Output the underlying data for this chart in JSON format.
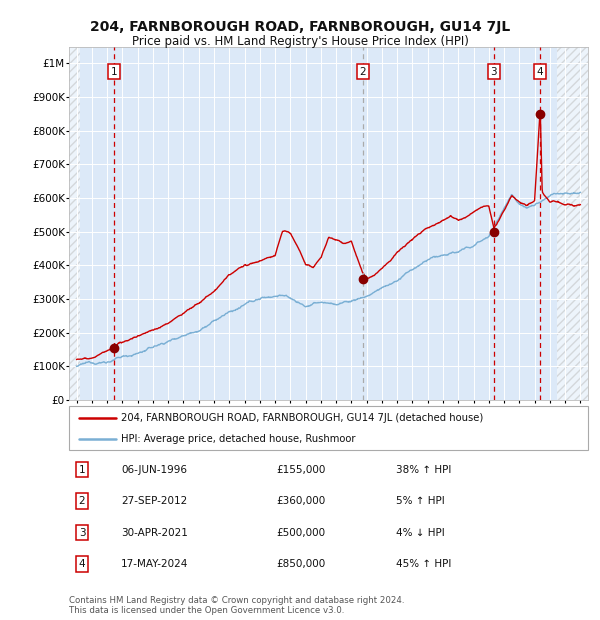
{
  "title": "204, FARNBOROUGH ROAD, FARNBOROUGH, GU14 7JL",
  "subtitle": "Price paid vs. HM Land Registry's House Price Index (HPI)",
  "ylim": [
    0,
    1050000
  ],
  "xlim_start": 1993.5,
  "xlim_end": 2027.5,
  "yticks": [
    0,
    100000,
    200000,
    300000,
    400000,
    500000,
    600000,
    700000,
    800000,
    900000,
    1000000
  ],
  "ytick_labels": [
    "£0",
    "£100K",
    "£200K",
    "£300K",
    "£400K",
    "£500K",
    "£600K",
    "£700K",
    "£800K",
    "£900K",
    "£1M"
  ],
  "xticks": [
    1994,
    1995,
    1996,
    1997,
    1998,
    1999,
    2000,
    2001,
    2002,
    2003,
    2004,
    2005,
    2006,
    2007,
    2008,
    2009,
    2010,
    2011,
    2012,
    2013,
    2014,
    2015,
    2016,
    2017,
    2018,
    2019,
    2020,
    2021,
    2022,
    2023,
    2024,
    2025,
    2026,
    2027
  ],
  "background_color": "#dce9f8",
  "grid_color": "#ffffff",
  "red_line_color": "#cc0000",
  "blue_line_color": "#7aafd4",
  "sale_marker_color": "#880000",
  "sales": [
    {
      "num": 1,
      "date_x": 1996.43,
      "price": 155000,
      "vline_color": "#cc0000"
    },
    {
      "num": 2,
      "date_x": 2012.74,
      "price": 360000,
      "vline_color": "#aaaaaa"
    },
    {
      "num": 3,
      "date_x": 2021.33,
      "price": 500000,
      "vline_color": "#cc0000"
    },
    {
      "num": 4,
      "date_x": 2024.37,
      "price": 850000,
      "vline_color": "#cc0000"
    }
  ],
  "hatch_left_end": 1994.25,
  "hatch_right_start": 2025.5,
  "table_data": [
    {
      "num": 1,
      "date": "06-JUN-1996",
      "price": "£155,000",
      "pct": "38%",
      "dir": "↑",
      "label": "HPI"
    },
    {
      "num": 2,
      "date": "27-SEP-2012",
      "price": "£360,000",
      "pct": "5%",
      "dir": "↑",
      "label": "HPI"
    },
    {
      "num": 3,
      "date": "30-APR-2021",
      "price": "£500,000",
      "pct": "4%",
      "dir": "↓",
      "label": "HPI"
    },
    {
      "num": 4,
      "date": "17-MAY-2024",
      "price": "£850,000",
      "pct": "45%",
      "dir": "↑",
      "label": "HPI"
    }
  ],
  "footer": "Contains HM Land Registry data © Crown copyright and database right 2024.\nThis data is licensed under the Open Government Licence v3.0.",
  "legend_line1": "204, FARNBOROUGH ROAD, FARNBOROUGH, GU14 7JL (detached house)",
  "legend_line2": "HPI: Average price, detached house, Rushmoor"
}
